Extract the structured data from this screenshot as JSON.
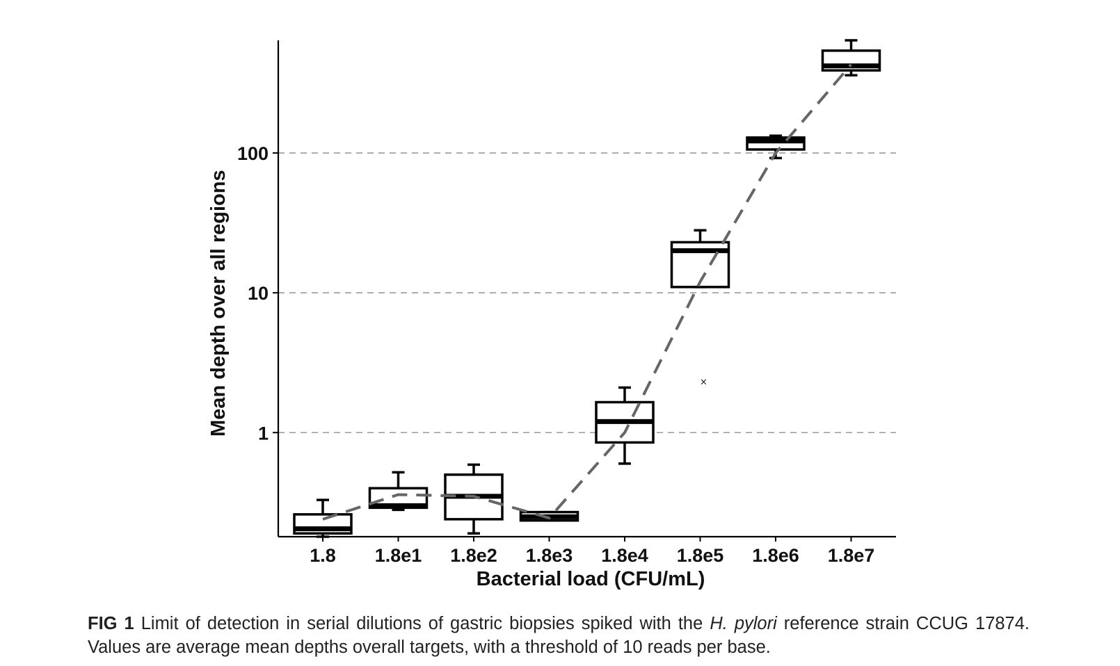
{
  "chart_data": {
    "type": "box",
    "xlabel": "Bacterial load (CFU/mL)",
    "ylabel": "Mean depth over all regions",
    "yscale": "log",
    "ylim": [
      0.18,
      640
    ],
    "y_ticks": [
      {
        "value": 1,
        "label": "1"
      },
      {
        "value": 10,
        "label": "10"
      },
      {
        "value": 100,
        "label": "100"
      }
    ],
    "grid": "horizontal dashed at major ticks",
    "categories": [
      "1.8",
      "1.8e1",
      "1.8e2",
      "1.8e3",
      "1.8e4",
      "1.8e5",
      "1.8e6",
      "1.8e7"
    ],
    "boxes": [
      {
        "category": "1.8",
        "whisker_low": 0.18,
        "q1": 0.19,
        "median": 0.205,
        "q3": 0.26,
        "whisker_high": 0.33
      },
      {
        "category": "1.8e1",
        "whisker_low": 0.28,
        "q1": 0.29,
        "median": 0.3,
        "q3": 0.4,
        "whisker_high": 0.52
      },
      {
        "category": "1.8e2",
        "whisker_low": 0.19,
        "q1": 0.24,
        "median": 0.35,
        "q3": 0.5,
        "whisker_high": 0.59
      },
      {
        "category": "1.8e3",
        "whisker_low": 0.235,
        "q1": 0.235,
        "median": 0.25,
        "q3": 0.27,
        "whisker_high": 0.27
      },
      {
        "category": "1.8e4",
        "whisker_low": 0.6,
        "q1": 0.85,
        "median": 1.2,
        "q3": 1.65,
        "whisker_high": 2.1
      },
      {
        "category": "1.8e5",
        "whisker_low": 11,
        "q1": 11,
        "median": 20,
        "q3": 23,
        "whisker_high": 28
      },
      {
        "category": "1.8e6",
        "whisker_low": 92,
        "q1": 106,
        "median": 122,
        "q3": 129,
        "whisker_high": 133
      },
      {
        "category": "1.8e7",
        "whisker_low": 360,
        "q1": 390,
        "median": 420,
        "q3": 540,
        "whisker_high": 640
      }
    ],
    "trend_line": {
      "style": "dashed",
      "color": "#666666",
      "values": [
        0.24,
        0.36,
        0.35,
        0.245,
        1.0,
        12,
        100,
        430
      ]
    },
    "outliers": [
      {
        "category": "1.8e5",
        "value": 2.3,
        "marker": "x"
      }
    ]
  },
  "caption": {
    "label": "FIG 1",
    "text_before_italic": " Limit of detection in serial dilutions of gastric biopsies spiked with the ",
    "italic": "H. pylori",
    "text_after_italic": " reference strain CCUG 17874. Values are average mean depths overall targets, with a threshold of 10 reads per base."
  },
  "colors": {
    "box_stroke": "#000000",
    "grid": "#9a9a9a",
    "trend": "#666666"
  }
}
